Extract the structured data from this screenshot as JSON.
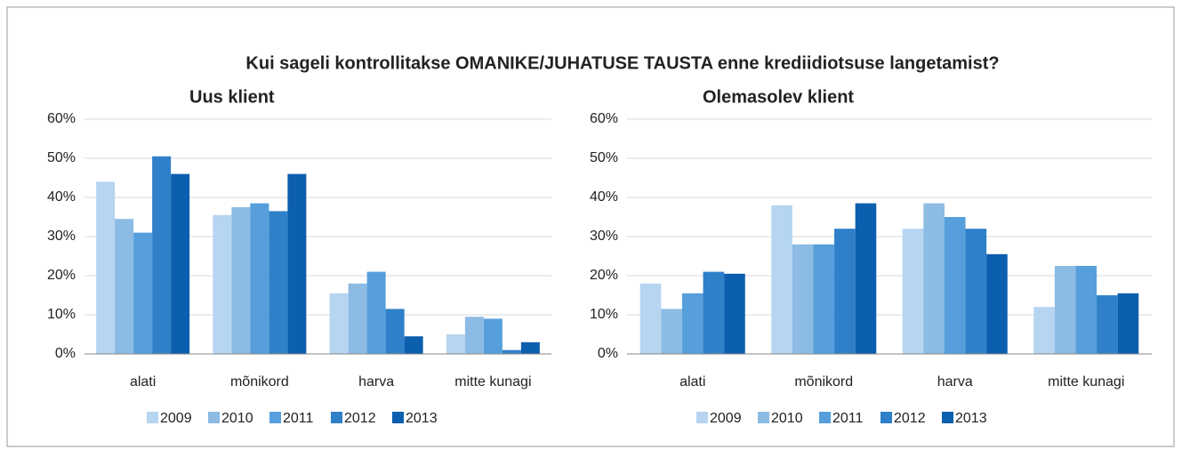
{
  "title": "Kui sageli kontrollitakse OMANIKE/JUHATUSE  TAUSTA enne krediidiotsuse langetamist?",
  "chart_data": [
    {
      "type": "bar",
      "title": "Uus klient",
      "categories": [
        "alati",
        "mõnikord",
        "harva",
        "mitte kunagi"
      ],
      "series": [
        {
          "name": "2009",
          "color": "#b5d5f1",
          "values": [
            44,
            35.5,
            15.5,
            5
          ]
        },
        {
          "name": "2010",
          "color": "#8cbbe3",
          "values": [
            34.5,
            37.5,
            18,
            9.5
          ]
        },
        {
          "name": "2011",
          "color": "#569fdc",
          "values": [
            31,
            38.5,
            21,
            9
          ]
        },
        {
          "name": "2012",
          "color": "#2f80c9",
          "values": [
            50.5,
            36.5,
            11.5,
            1
          ]
        },
        {
          "name": "2013",
          "color": "#0c5eae",
          "values": [
            46,
            46,
            4.5,
            3
          ]
        }
      ],
      "ylim": [
        0,
        60
      ],
      "yticks": [
        {
          "value": 0,
          "label": "0%"
        },
        {
          "value": 10,
          "label": "10%"
        },
        {
          "value": 20,
          "label": "20%"
        },
        {
          "value": 30,
          "label": "30%"
        },
        {
          "value": 40,
          "label": "40%"
        },
        {
          "value": 50,
          "label": "50%"
        },
        {
          "value": 60,
          "label": "60%"
        }
      ],
      "grid": true,
      "legend": "bottom"
    },
    {
      "type": "bar",
      "title": "Olemasolev klient",
      "categories": [
        "alati",
        "mõnikord",
        "harva",
        "mitte kunagi"
      ],
      "series": [
        {
          "name": "2009",
          "color": "#b5d5f1",
          "values": [
            18,
            38,
            32,
            12
          ]
        },
        {
          "name": "2010",
          "color": "#8cbbe3",
          "values": [
            11.5,
            28,
            38.5,
            22.5
          ]
        },
        {
          "name": "2011",
          "color": "#569fdc",
          "values": [
            15.5,
            28,
            35,
            22.5
          ]
        },
        {
          "name": "2012",
          "color": "#2f80c9",
          "values": [
            21,
            32,
            32,
            15
          ]
        },
        {
          "name": "2013",
          "color": "#0c5eae",
          "values": [
            20.5,
            38.5,
            25.5,
            15.5
          ]
        }
      ],
      "ylim": [
        0,
        60
      ],
      "yticks": [
        {
          "value": 0,
          "label": "0%"
        },
        {
          "value": 10,
          "label": "10%"
        },
        {
          "value": 20,
          "label": "20%"
        },
        {
          "value": 30,
          "label": "30%"
        },
        {
          "value": 40,
          "label": "40%"
        },
        {
          "value": 50,
          "label": "50%"
        },
        {
          "value": 60,
          "label": "60%"
        }
      ],
      "grid": true,
      "legend": "bottom"
    }
  ]
}
